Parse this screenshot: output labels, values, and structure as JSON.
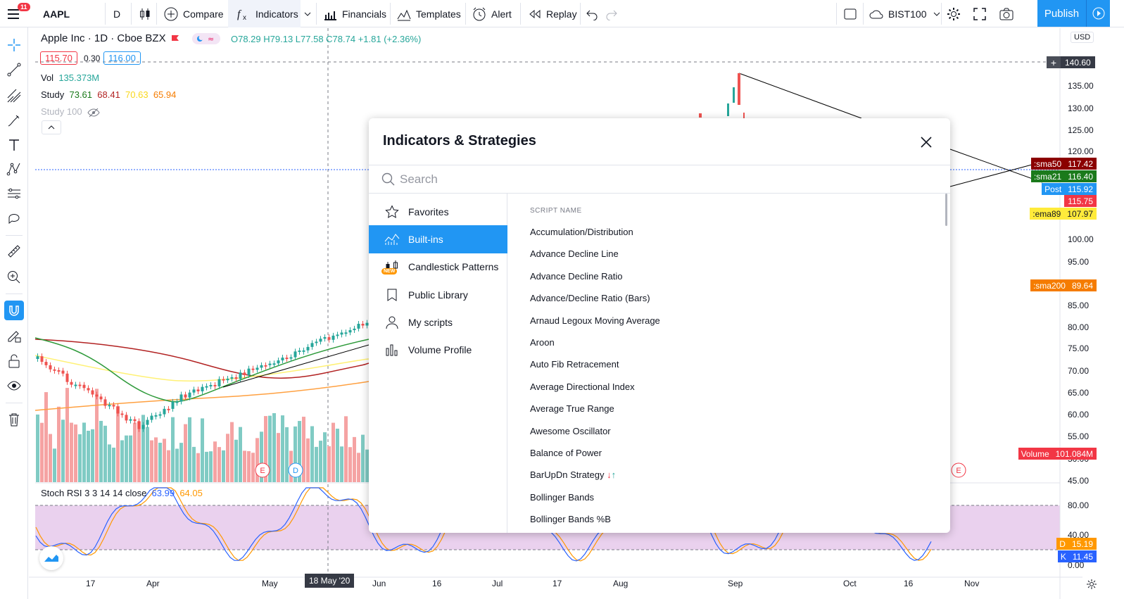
{
  "topbar": {
    "notifications": "11",
    "symbol": "AAPL",
    "interval": "D",
    "compare": "Compare",
    "indicators": "Indicators",
    "financials": "Financials",
    "templates": "Templates",
    "alert": "Alert",
    "replay": "Replay",
    "exchange": "BIST100",
    "publish": "Publish"
  },
  "legend": {
    "title": "Apple Inc · 1D · Cboe BZX",
    "ohlc": "O78.29  H79.13  L77.58  C78.74  +1.81 (+2.36%)",
    "bid": "115.70",
    "spread": "0.30",
    "ask": "116.00",
    "vol_label": "Vol",
    "vol_value": "135.373M",
    "study_label": "Study",
    "study_v1": "73.61",
    "study_v2": "68.41",
    "study_v3": "70.63",
    "study_v4": "65.94",
    "study100": "Study 100",
    "stoch_label": "Stoch RSI 3 3 14 14 close",
    "stoch_k": "63.99",
    "stoch_d": "64.05"
  },
  "price_axis": {
    "currency": "USD",
    "ticks": [
      "135.00",
      "130.00",
      "125.00",
      "120.00",
      "100.00",
      "95.00",
      "85.00",
      "80.00",
      "75.00",
      "70.00",
      "65.00",
      "60.00",
      "55.00",
      "50.00",
      "45.00"
    ],
    "rsi_ticks": [
      "80.00",
      "40.00",
      "0.00"
    ],
    "crosshair": "140.60",
    "labels": [
      {
        "name": ":sma50",
        "value": "117.42",
        "color": "#8b0000"
      },
      {
        "name": ":sma21",
        "value": "116.40",
        "color": "#1b7a1b"
      },
      {
        "name": "Post",
        "value": "115.92",
        "color": "#2196f3"
      },
      {
        "name": "",
        "value": "115.75",
        "color": "#f23645"
      },
      {
        "name": ":ema89",
        "value": "107.97",
        "color": "#ffeb3b"
      },
      {
        "name": ":sma200",
        "value": "89.64",
        "color": "#f57c00"
      },
      {
        "name": "Volume",
        "value": "101.084M",
        "color": "#f23645"
      },
      {
        "name": "D",
        "value": "15.19",
        "color": "#ff9800"
      },
      {
        "name": "K",
        "value": "11.45",
        "color": "#2962ff"
      }
    ]
  },
  "time_axis": {
    "labels": [
      "17",
      "Apr",
      "May",
      "Jun",
      "16",
      "Jul",
      "17",
      "Aug",
      "Sep",
      "Oct",
      "16",
      "Nov"
    ],
    "crosshair": "18 May '20"
  },
  "dialog": {
    "title": "Indicators & Strategies",
    "search_placeholder": "Search",
    "nav": [
      "Favorites",
      "Built-ins",
      "Candlestick Patterns",
      "Public Library",
      "My scripts",
      "Volume Profile"
    ],
    "new_badge": "NEW",
    "list_header": "SCRIPT NAME",
    "scripts": [
      "Accumulation/Distribution",
      "Advance Decline Line",
      "Advance Decline Ratio",
      "Advance/Decline Ratio (Bars)",
      "Arnaud Legoux Moving Average",
      "Aroon",
      "Auto Fib Retracement",
      "Average Directional Index",
      "Average True Range",
      "Awesome Oscillator",
      "Balance of Power",
      "BarUpDn Strategy",
      "Bollinger Bands",
      "Bollinger Bands %B"
    ]
  },
  "colors": {
    "accent": "#2196f3",
    "up": "#26a69a",
    "down": "#ef5350",
    "rsi_band": "#e1bee7"
  }
}
